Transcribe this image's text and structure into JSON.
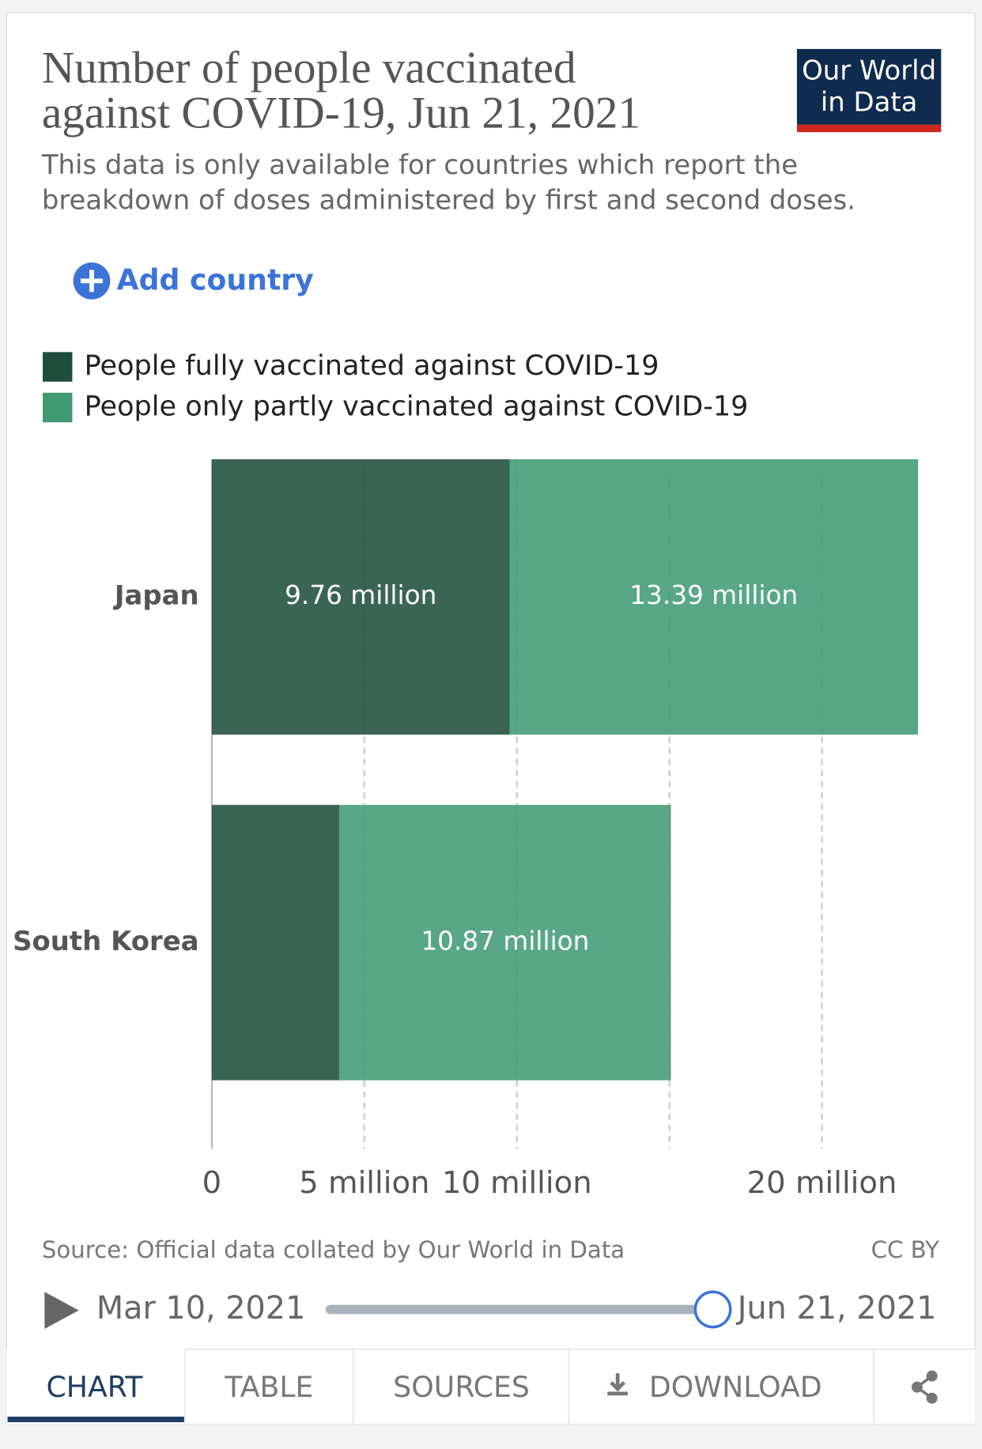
{
  "chart_data": {
    "type": "stacked-hbar",
    "title": [
      "Number of people vaccinated",
      "against COVID-19, Jun 21, 2021"
    ],
    "subtitle": [
      "This data is only available for countries which report the",
      "breakdown of doses administered by first and second doses."
    ],
    "categories": [
      "Japan",
      "South Korea"
    ],
    "series": [
      {
        "name": "People fully vaccinated against COVID-19",
        "color": "#1f4d3b",
        "values": [
          9.76,
          4.18
        ],
        "value_labels": [
          "9.76 million",
          null
        ]
      },
      {
        "name": "People only partly vaccinated against COVID-19",
        "color": "#3f9a74",
        "values": [
          13.39,
          10.87
        ],
        "value_labels": [
          "13.39 million",
          "10.87 million"
        ]
      }
    ],
    "xlim": [
      0,
      23.15
    ],
    "xticks": [
      0,
      {
        "value": 5,
        "label": "5 million"
      },
      {
        "value": 10,
        "label": "10 million"
      },
      {
        "value": 15,
        "label": null
      },
      {
        "value": 20,
        "label": "20 million"
      }
    ],
    "grid": true,
    "legend": "top-left",
    "source": "Source: Official data collated by Our World in Data",
    "license": "CC BY"
  },
  "ui": {
    "logo": [
      "Our World",
      "in Data"
    ],
    "add_country": "Add country",
    "timeline": {
      "start": "Mar 10, 2021",
      "end": "Jun 21, 2021"
    },
    "tabs": [
      "CHART",
      "TABLE",
      "SOURCES",
      "DOWNLOAD"
    ]
  }
}
